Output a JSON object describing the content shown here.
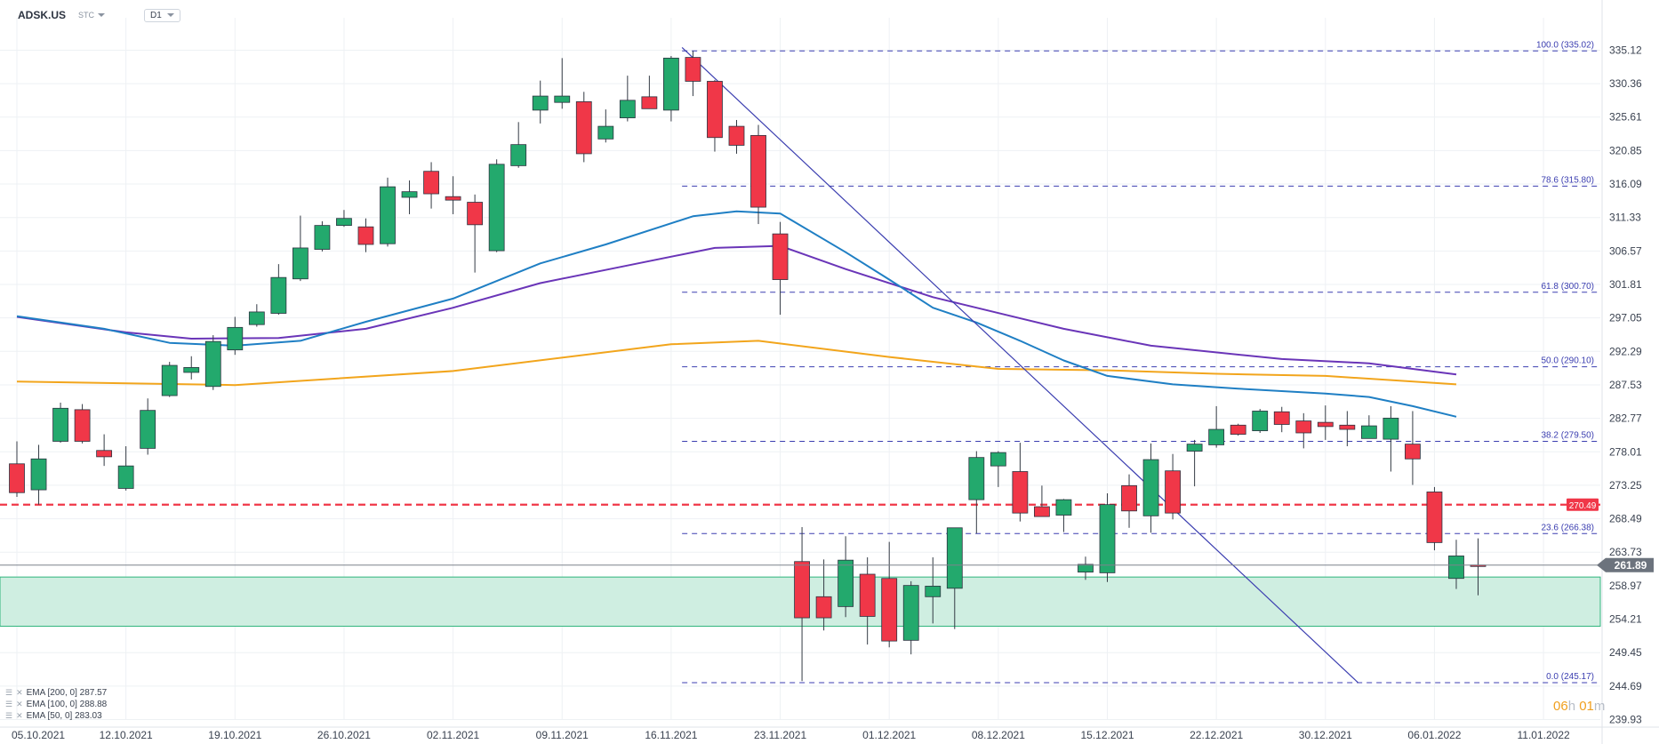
{
  "header": {
    "symbol": "ADSK.US",
    "badge": "STC",
    "timeframe": "D1"
  },
  "indicators": [
    {
      "label": "EMA [200, 0] 287.57",
      "color": "#f2a51c"
    },
    {
      "label": "EMA [100, 0] 288.88",
      "color": "#6a35b8"
    },
    {
      "label": "EMA [50, 0] 283.03",
      "color": "#1f7fc4"
    }
  ],
  "countdown": {
    "hours": "06",
    "h_unit": "h",
    "minutes": "01",
    "m_unit": "m"
  },
  "chart_data": {
    "type": "candlestick",
    "ylim": [
      237.5,
      337.5
    ],
    "y_ticks": [
      "335.12",
      "330.36",
      "325.61",
      "320.85",
      "316.09",
      "311.33",
      "306.57",
      "301.81",
      "297.05",
      "292.29",
      "287.53",
      "282.77",
      "278.01",
      "273.25",
      "268.49",
      "263.73",
      "258.97",
      "254.21",
      "249.45",
      "244.69",
      "239.93"
    ],
    "x_ticks": [
      {
        "label": "05.10.2021",
        "i": 0
      },
      {
        "label": "12.10.2021",
        "i": 5
      },
      {
        "label": "19.10.2021",
        "i": 10
      },
      {
        "label": "26.10.2021",
        "i": 15
      },
      {
        "label": "02.11.2021",
        "i": 20
      },
      {
        "label": "09.11.2021",
        "i": 25
      },
      {
        "label": "16.11.2021",
        "i": 30
      },
      {
        "label": "23.11.2021",
        "i": 35
      },
      {
        "label": "01.12.2021",
        "i": 40
      },
      {
        "label": "08.12.2021",
        "i": 45
      },
      {
        "label": "15.12.2021",
        "i": 50
      },
      {
        "label": "22.12.2021",
        "i": 55
      },
      {
        "label": "30.12.2021",
        "i": 60
      },
      {
        "label": "06.01.2022",
        "i": 65
      },
      {
        "label": "11.01.2022",
        "i": 70
      }
    ],
    "candles": [
      [
        276.3,
        279.5,
        271.6,
        272.2
      ],
      [
        272.6,
        279.0,
        270.5,
        277.0
      ],
      [
        279.5,
        285.0,
        279.3,
        284.2
      ],
      [
        284.0,
        284.8,
        279.2,
        279.5
      ],
      [
        278.2,
        280.5,
        276.0,
        277.3
      ],
      [
        272.8,
        278.8,
        272.5,
        276.0
      ],
      [
        278.5,
        285.6,
        277.6,
        283.9
      ],
      [
        286.0,
        290.8,
        285.8,
        290.3
      ],
      [
        289.3,
        291.6,
        288.3,
        290.0
      ],
      [
        287.3,
        294.6,
        286.8,
        293.7
      ],
      [
        292.5,
        297.2,
        291.8,
        295.7
      ],
      [
        296.1,
        299.0,
        295.8,
        297.9
      ],
      [
        297.7,
        304.7,
        297.5,
        302.8
      ],
      [
        302.6,
        311.6,
        302.3,
        307.0
      ],
      [
        306.8,
        310.8,
        306.5,
        310.2
      ],
      [
        310.2,
        312.4,
        310.0,
        311.2
      ],
      [
        310.0,
        311.2,
        306.4,
        307.5
      ],
      [
        307.6,
        317.0,
        307.2,
        315.7
      ],
      [
        314.2,
        316.6,
        311.8,
        315.0
      ],
      [
        317.9,
        319.2,
        312.6,
        314.7
      ],
      [
        314.3,
        317.2,
        311.8,
        313.8
      ],
      [
        313.5,
        314.6,
        303.5,
        310.3
      ],
      [
        306.6,
        319.6,
        306.4,
        318.9
      ],
      [
        318.7,
        324.9,
        318.4,
        321.7
      ],
      [
        326.6,
        330.8,
        324.7,
        328.6
      ],
      [
        327.7,
        334.0,
        326.8,
        328.6
      ],
      [
        327.8,
        329.2,
        319.2,
        320.4
      ],
      [
        322.5,
        326.7,
        322.0,
        324.3
      ],
      [
        325.5,
        331.5,
        325.0,
        328.0
      ],
      [
        328.5,
        331.5,
        327.7,
        326.8
      ],
      [
        326.6,
        334.3,
        325.0,
        334.0
      ],
      [
        334.1,
        335.0,
        328.6,
        330.7
      ],
      [
        330.7,
        330.9,
        320.7,
        322.7
      ],
      [
        324.3,
        325.2,
        320.4,
        321.6
      ],
      [
        323.0,
        324.5,
        310.4,
        312.8
      ],
      [
        309.0,
        310.7,
        297.5,
        302.5
      ],
      [
        262.4,
        267.3,
        245.4,
        254.4
      ],
      [
        257.4,
        262.7,
        252.6,
        254.4
      ],
      [
        256.0,
        266.0,
        254.5,
        262.6
      ],
      [
        260.6,
        263.0,
        250.6,
        254.6
      ],
      [
        260.0,
        265.2,
        250.2,
        251.1
      ],
      [
        251.2,
        259.6,
        249.2,
        259.0
      ],
      [
        257.4,
        263.0,
        253.6,
        258.9
      ],
      [
        258.6,
        266.7,
        252.8,
        267.2
      ],
      [
        271.2,
        278.1,
        266.4,
        277.2
      ],
      [
        276.0,
        278.1,
        273.0,
        277.9
      ],
      [
        275.2,
        279.3,
        268.1,
        269.3
      ],
      [
        270.2,
        273.2,
        269.0,
        268.8
      ],
      [
        269.0,
        271.3,
        266.6,
        271.2
      ],
      [
        260.9,
        263.1,
        259.8,
        262.0
      ],
      [
        260.8,
        272.1,
        259.5,
        270.5
      ],
      [
        273.2,
        274.8,
        267.2,
        269.6
      ],
      [
        268.9,
        279.2,
        266.5,
        276.9
      ],
      [
        275.3,
        277.7,
        268.4,
        269.3
      ],
      [
        278.1,
        279.7,
        273.1,
        279.1
      ],
      [
        279.0,
        284.5,
        278.6,
        281.2
      ],
      [
        281.8,
        282.0,
        280.3,
        280.5
      ],
      [
        281.0,
        284.1,
        280.7,
        283.8
      ],
      [
        283.7,
        284.4,
        280.8,
        281.9
      ],
      [
        282.4,
        283.5,
        278.5,
        280.7
      ],
      [
        282.2,
        284.6,
        279.7,
        281.6
      ],
      [
        281.8,
        283.8,
        278.8,
        281.2
      ],
      [
        279.9,
        283.2,
        280.2,
        281.7
      ],
      [
        279.8,
        284.5,
        275.2,
        282.8
      ],
      [
        279.1,
        283.8,
        273.3,
        277.0
      ],
      [
        272.3,
        273.0,
        264.0,
        265.1
      ],
      [
        260.0,
        265.5,
        258.5,
        263.2
      ],
      [
        261.9,
        265.7,
        257.6,
        261.7
      ]
    ],
    "ema_200": [
      [
        0,
        288.0
      ],
      [
        10,
        287.5
      ],
      [
        20,
        289.5
      ],
      [
        30,
        293.3
      ],
      [
        34,
        293.8
      ],
      [
        40,
        291.5
      ],
      [
        45,
        289.8
      ],
      [
        50,
        289.6
      ],
      [
        55,
        289.1
      ],
      [
        60,
        288.8
      ],
      [
        66,
        287.6
      ]
    ],
    "ema_100": [
      [
        0,
        297.2
      ],
      [
        5,
        295.0
      ],
      [
        8,
        294.1
      ],
      [
        12,
        294.2
      ],
      [
        16,
        295.5
      ],
      [
        20,
        298.5
      ],
      [
        24,
        302.0
      ],
      [
        28,
        304.5
      ],
      [
        32,
        307.0
      ],
      [
        35,
        307.3
      ],
      [
        38,
        304.0
      ],
      [
        42,
        300.0
      ],
      [
        48,
        295.5
      ],
      [
        52,
        293.1
      ],
      [
        58,
        291.2
      ],
      [
        62,
        290.6
      ],
      [
        66,
        289.0
      ]
    ],
    "ema_50": [
      [
        0,
        297.3
      ],
      [
        4,
        295.5
      ],
      [
        7,
        293.5
      ],
      [
        10,
        293.1
      ],
      [
        13,
        293.8
      ],
      [
        16,
        296.5
      ],
      [
        20,
        299.8
      ],
      [
        24,
        304.8
      ],
      [
        27,
        307.5
      ],
      [
        31,
        311.5
      ],
      [
        33,
        312.2
      ],
      [
        35,
        311.9
      ],
      [
        38,
        306.4
      ],
      [
        40,
        302.5
      ],
      [
        42,
        298.5
      ],
      [
        44,
        296.4
      ],
      [
        46,
        293.8
      ],
      [
        48,
        291.0
      ],
      [
        50,
        288.8
      ],
      [
        53,
        287.6
      ],
      [
        56,
        287.0
      ],
      [
        60,
        286.3
      ],
      [
        62,
        285.8
      ],
      [
        64,
        284.5
      ],
      [
        66,
        283.0
      ]
    ],
    "fibonacci": [
      {
        "label": "100.0 (335.02)",
        "value": 335.02
      },
      {
        "label": "78.6 (315.80)",
        "value": 315.8
      },
      {
        "label": "61.8 (300.70)",
        "value": 300.7
      },
      {
        "label": "50.0 (290.10)",
        "value": 290.1
      },
      {
        "label": "38.2 (279.50)",
        "value": 279.5
      },
      {
        "label": "23.6 (266.38)",
        "value": 266.38
      },
      {
        "label": "0.0 (245.17)",
        "value": 245.17
      }
    ],
    "fib_start_index": 30.5,
    "trendline": [
      [
        30.5,
        335.5
      ],
      [
        61.5,
        245.17
      ]
    ],
    "resistance": {
      "value": 270.49,
      "label": "270.49",
      "color": "#d9232a"
    },
    "support_zone": [
      253.2,
      260.2
    ],
    "last_price": {
      "value": 261.89,
      "label": "261.89"
    },
    "colors": {
      "up": "#23a96d",
      "down": "#f03748",
      "ema_200": "#f2a51c",
      "ema_100": "#6a35b8",
      "ema_50": "#1f7fc4",
      "fib": "#3b3eb0",
      "zone": "#cfeee1"
    }
  }
}
